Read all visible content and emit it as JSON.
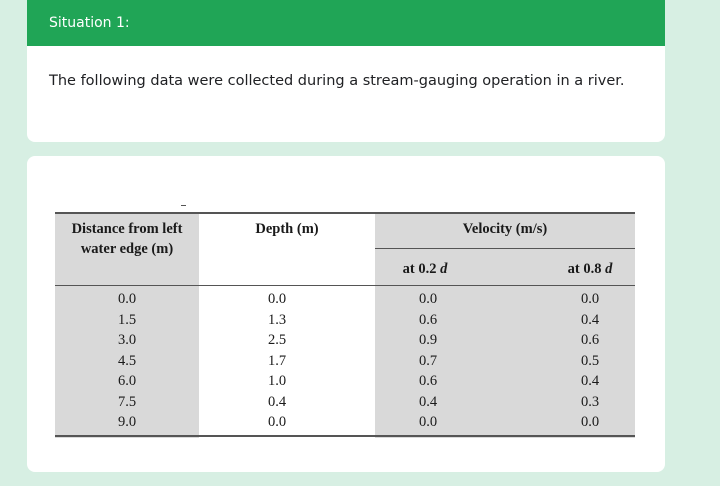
{
  "situation": {
    "title": "Situation 1:",
    "description": "The following data were collected during a stream-gauging operation in a river."
  },
  "table": {
    "headers": {
      "distance": "Distance from left water edge (m)",
      "depth": "Depth (m)",
      "velocity": "Velocity (m/s)",
      "v02_prefix": "at 0.2",
      "v02_var": "d",
      "v08_prefix": "at 0.8",
      "v08_var": "d"
    },
    "rows": [
      [
        "0.0",
        "0.0",
        "0.0",
        "0.0"
      ],
      [
        "1.5",
        "1.3",
        "0.6",
        "0.4"
      ],
      [
        "3.0",
        "2.5",
        "0.9",
        "0.6"
      ],
      [
        "4.5",
        "1.7",
        "0.7",
        "0.5"
      ],
      [
        "6.0",
        "1.0",
        "0.6",
        "0.4"
      ],
      [
        "7.5",
        "0.4",
        "0.4",
        "0.3"
      ],
      [
        "9.0",
        "0.0",
        "0.0",
        "0.0"
      ]
    ]
  }
}
